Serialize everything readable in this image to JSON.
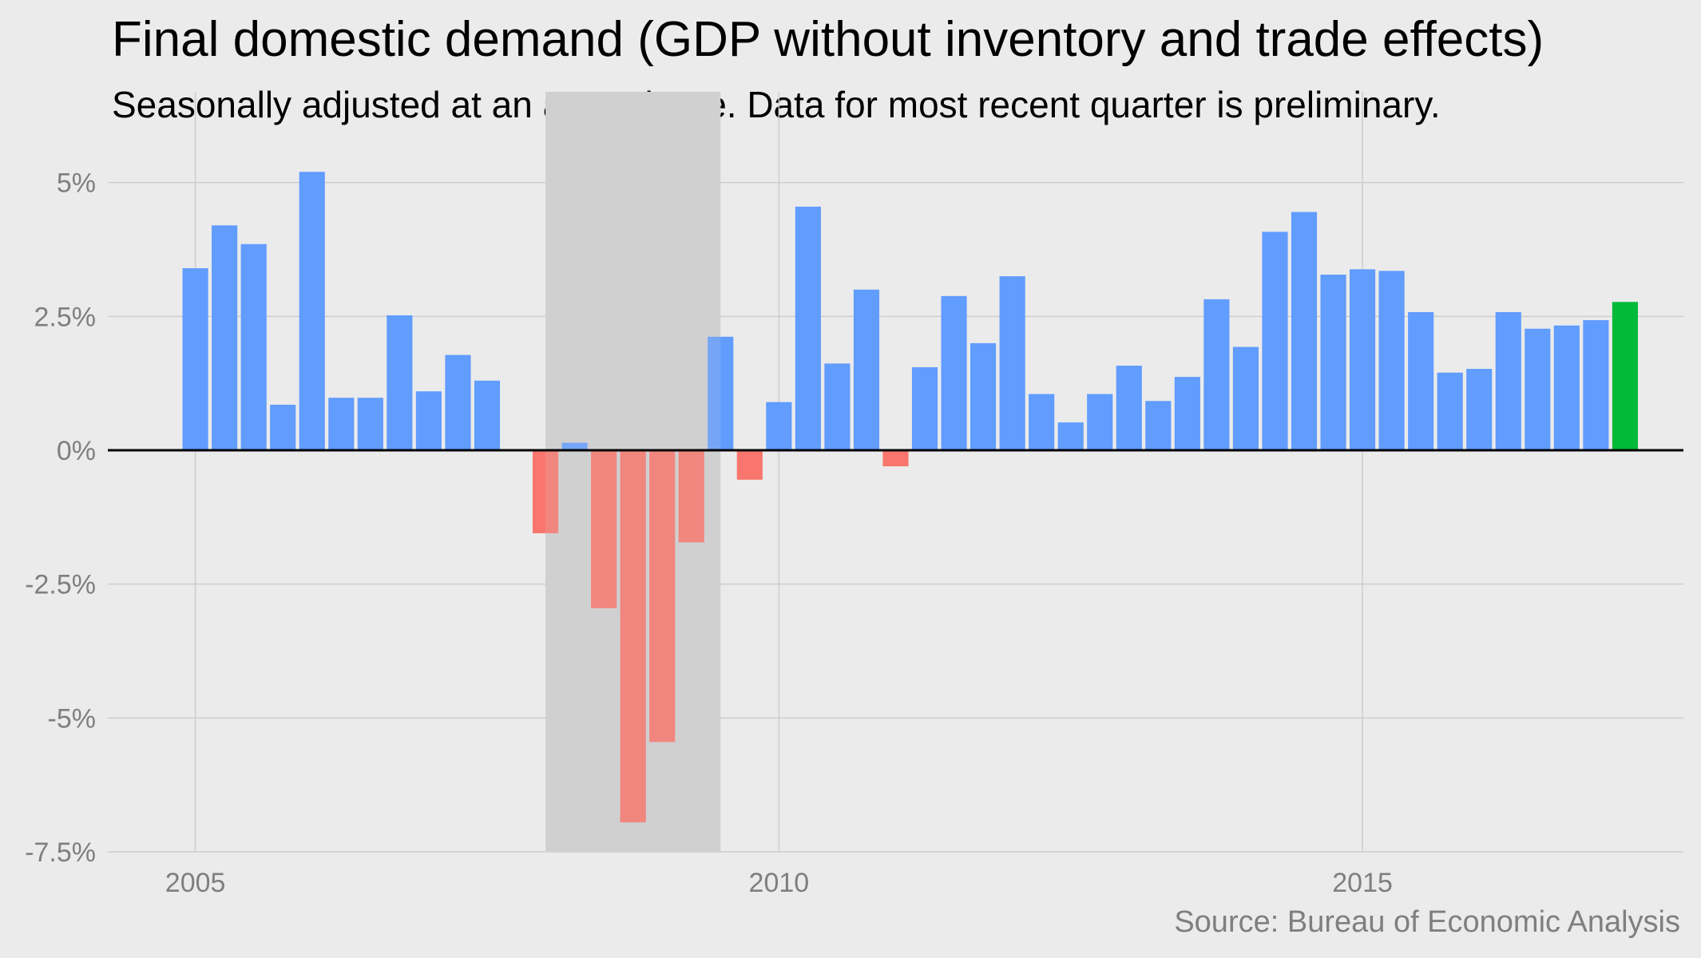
{
  "colors": {
    "background": "#ebebeb",
    "gridline": "#cdcdcd",
    "recession_shade": "#d0d0d0",
    "positive": "#619cff",
    "negative": "#f8766d",
    "latest": "#00ba38",
    "zero_line": "#000000",
    "axis_text": "#7f7f7f"
  },
  "chart_data": {
    "type": "bar",
    "title": "Final domestic demand (GDP without inventory and trade effects)",
    "subtitle": "Seasonally adjusted at an annual rate. Data for most recent quarter is preliminary.",
    "caption": "Source: Bureau of Economic Analysis",
    "xlabel": "",
    "ylabel": "",
    "x_ticks": [
      2005,
      2010,
      2015
    ],
    "x_tick_labels": [
      "2005",
      "2010",
      "2015"
    ],
    "xlim": [
      2004.25,
      2017.75
    ],
    "y_ticks": [
      5,
      2.5,
      0,
      -2.5,
      -5,
      -7.5
    ],
    "y_tick_labels": [
      "5%",
      "2.5%",
      "0%",
      "-2.5%",
      "-5%",
      "-7.5%"
    ],
    "ylim": [
      -7.5,
      5.8
    ],
    "grid": true,
    "recession_shading": [
      2008.0,
      2009.5
    ],
    "bar_width_years": 0.22,
    "bars": [
      {
        "x": 2005.0,
        "value": 3.4
      },
      {
        "x": 2005.25,
        "value": 4.2
      },
      {
        "x": 2005.5,
        "value": 3.85
      },
      {
        "x": 2005.75,
        "value": 0.85
      },
      {
        "x": 2006.0,
        "value": 5.2
      },
      {
        "x": 2006.25,
        "value": 0.98
      },
      {
        "x": 2006.5,
        "value": 0.98
      },
      {
        "x": 2006.75,
        "value": 2.52
      },
      {
        "x": 2007.0,
        "value": 1.1
      },
      {
        "x": 2007.25,
        "value": 1.78
      },
      {
        "x": 2007.5,
        "value": 1.3
      },
      {
        "x": 2007.75,
        "value": 0.0
      },
      {
        "x": 2008.0,
        "value": -1.55
      },
      {
        "x": 2008.25,
        "value": 0.14
      },
      {
        "x": 2008.5,
        "value": -2.95
      },
      {
        "x": 2008.75,
        "value": -6.95
      },
      {
        "x": 2009.0,
        "value": -5.45
      },
      {
        "x": 2009.25,
        "value": -1.72
      },
      {
        "x": 2009.5,
        "value": 2.12
      },
      {
        "x": 2009.75,
        "value": -0.55
      },
      {
        "x": 2010.0,
        "value": 0.9
      },
      {
        "x": 2010.25,
        "value": 4.55
      },
      {
        "x": 2010.5,
        "value": 1.62
      },
      {
        "x": 2010.75,
        "value": 3.0
      },
      {
        "x": 2011.0,
        "value": -0.3
      },
      {
        "x": 2011.25,
        "value": 1.55
      },
      {
        "x": 2011.5,
        "value": 2.88
      },
      {
        "x": 2011.75,
        "value": 2.0
      },
      {
        "x": 2012.0,
        "value": 3.25
      },
      {
        "x": 2012.25,
        "value": 1.05
      },
      {
        "x": 2012.5,
        "value": 0.52
      },
      {
        "x": 2012.75,
        "value": 1.05
      },
      {
        "x": 2013.0,
        "value": 1.58
      },
      {
        "x": 2013.25,
        "value": 0.92
      },
      {
        "x": 2013.5,
        "value": 1.37
      },
      {
        "x": 2013.75,
        "value": 2.82
      },
      {
        "x": 2014.0,
        "value": 1.93
      },
      {
        "x": 2014.25,
        "value": 4.08
      },
      {
        "x": 2014.5,
        "value": 4.45
      },
      {
        "x": 2014.75,
        "value": 3.28
      },
      {
        "x": 2015.0,
        "value": 3.38
      },
      {
        "x": 2015.25,
        "value": 3.35
      },
      {
        "x": 2015.5,
        "value": 2.58
      },
      {
        "x": 2015.75,
        "value": 1.45
      },
      {
        "x": 2016.0,
        "value": 1.52
      },
      {
        "x": 2016.25,
        "value": 2.58
      },
      {
        "x": 2016.5,
        "value": 2.27
      },
      {
        "x": 2016.75,
        "value": 2.33
      },
      {
        "x": 2017.0,
        "value": 2.43
      },
      {
        "x": 2017.25,
        "value": 2.77,
        "preliminary": true
      }
    ]
  }
}
